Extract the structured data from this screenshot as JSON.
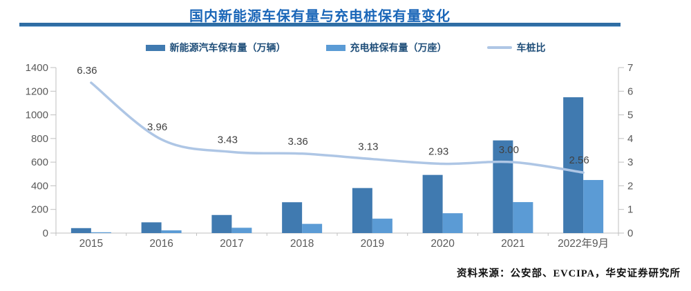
{
  "header": {
    "title": "国内新能源车保有量与充电桩保有量变化"
  },
  "source": {
    "text": "资料来源：公安部、EVCIPA，华安证券研究所"
  },
  "colors": {
    "title_blue": "#1A66B8",
    "divider": "#2E6DA4",
    "legend_text": "#1F4E79",
    "bar_dark": "#407AB0",
    "bar_light": "#5B9BD5",
    "line": "#AEC6E5",
    "axis": "#BFBFBF",
    "tick_text": "#595959",
    "data_label_text": "#404040"
  },
  "chart_data": {
    "type": "bar",
    "title": "国内新能源车保有量与充电桩保有量变化",
    "categories": [
      "2015",
      "2016",
      "2017",
      "2018",
      "2019",
      "2020",
      "2021",
      "2022年9月"
    ],
    "series": [
      {
        "name": "新能源汽车保有量（万辆）",
        "kind": "bar",
        "axis": "left",
        "color": "#407AB0",
        "values": [
          42,
          91,
          153,
          261,
          381,
          492,
          784,
          1149
        ]
      },
      {
        "name": "充电桩保有量（万座）",
        "kind": "bar",
        "axis": "left",
        "color": "#5B9BD5",
        "values": [
          7,
          23,
          45,
          78,
          122,
          168,
          262,
          449
        ]
      },
      {
        "name": "车桩比",
        "kind": "line",
        "axis": "right",
        "color": "#AEC6E5",
        "values": [
          6.36,
          3.96,
          3.43,
          3.36,
          3.13,
          2.93,
          3.0,
          2.56
        ],
        "labels": [
          "6.36",
          "3.96",
          "3.43",
          "3.36",
          "3.13",
          "2.93",
          "3.00",
          "2.56"
        ]
      }
    ],
    "left_axis": {
      "min": 0,
      "max": 1400,
      "step": 200
    },
    "right_axis": {
      "min": 0,
      "max": 7,
      "step": 1
    },
    "grid": false,
    "legend_position": "top"
  }
}
